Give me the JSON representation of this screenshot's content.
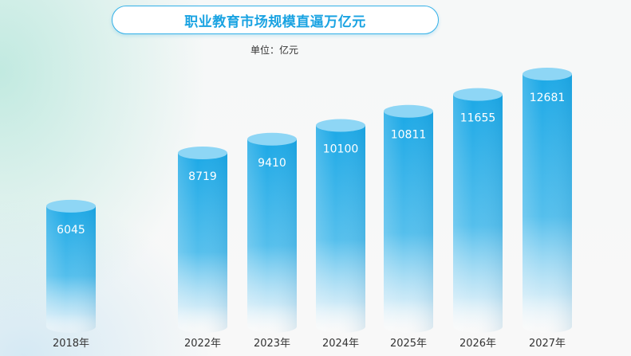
{
  "title": "职业教育市场规模直逼万亿元",
  "unit_label": "单位：亿元",
  "colors": {
    "accent": "#1aa3e2",
    "bar_top": "#1ba8e6",
    "bar_cap": "#8ed6f5",
    "value_text": "#ffffff",
    "axis_text": "#333333"
  },
  "chart_data": {
    "type": "bar",
    "categories": [
      "2018年",
      "2022年",
      "2023年",
      "2024年",
      "2025年",
      "2026年",
      "2027年"
    ],
    "values": [
      6045,
      8719,
      9410,
      10100,
      10811,
      11655,
      12681
    ],
    "title": "职业教育市场规模直逼万亿元",
    "ylabel": "单位：亿元",
    "grid": false,
    "legend": "none"
  }
}
